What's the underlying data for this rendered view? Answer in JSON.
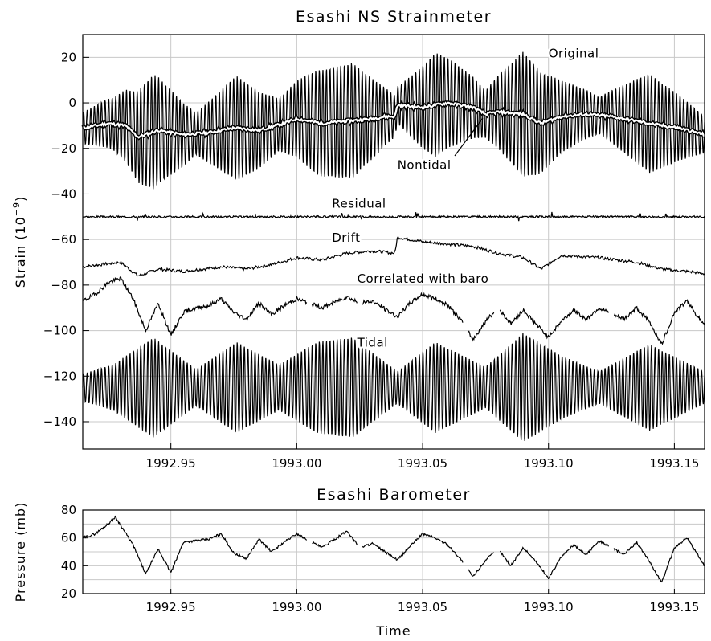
{
  "chart_data": [
    {
      "type": "line",
      "title": "Esashi NS Strainmeter",
      "ylabel_base": "Strain  (10",
      "ylabel_exp": "−9",
      "ylabel_close": ")",
      "xlim": [
        1992.915,
        1993.162
      ],
      "ylim": [
        -152,
        30
      ],
      "x_ticks": [
        1992.95,
        1993.0,
        1993.05,
        1993.1,
        1993.15
      ],
      "x_tick_labels": [
        "1992.95",
        "1993.00",
        "1993.05",
        "1993.10",
        "1993.15"
      ],
      "y_ticks": [
        20,
        0,
        -20,
        -40,
        -60,
        -80,
        -100,
        -120,
        -140
      ],
      "y_tick_labels": [
        "20",
        "0",
        "−20",
        "−40",
        "−60",
        "−80",
        "−100",
        "−120",
        "−140"
      ],
      "grid": true,
      "annotations": [
        {
          "text": "Original",
          "x": 1993.1,
          "y": 20
        },
        {
          "text": "Nontidal",
          "x": 1993.04,
          "y": -29
        },
        {
          "text": "Residual",
          "x": 1993.014,
          "y": -46
        },
        {
          "text": "Drift",
          "x": 1993.014,
          "y": -61
        },
        {
          "text": "Correlated  with  baro",
          "x": 1993.024,
          "y": -79
        },
        {
          "text": "Tidal",
          "x": 1993.024,
          "y": -107
        }
      ],
      "series": [
        {
          "name": "Original",
          "style": "tidal-oscillation",
          "base": "Nontidal",
          "note": "Original = Nontidal + Tidal oscillation"
        },
        {
          "name": "Nontidal",
          "offset": 0,
          "x": [
            1992.915,
            1992.925,
            1992.932,
            1992.937,
            1992.945,
            1992.955,
            1992.965,
            1992.975,
            1992.985,
            1992.995,
            1993.0,
            1993.01,
            1993.02,
            1993.03,
            1993.035,
            1993.039,
            1993.04,
            1993.05,
            1993.06,
            1993.07,
            1993.075,
            1993.08,
            1993.09,
            1993.097,
            1993.105,
            1993.115,
            1993.125,
            1993.135,
            1993.145,
            1993.152,
            1993.162
          ],
          "values": [
            -11,
            -9,
            -10,
            -15,
            -12,
            -14,
            -13,
            -11,
            -12,
            -9,
            -7,
            -9,
            -8,
            -7,
            -6,
            -6,
            -1,
            -2,
            0,
            -2,
            -5,
            -4,
            -5,
            -9,
            -6,
            -5,
            -6,
            -8,
            -10,
            -11,
            -14
          ]
        },
        {
          "name": "Residual",
          "offset": -50,
          "x": [
            1992.915,
            1993.162
          ],
          "values": [
            -50,
            -50
          ]
        },
        {
          "name": "Drift",
          "x": [
            1992.915,
            1992.93,
            1992.937,
            1992.945,
            1992.955,
            1992.97,
            1992.98,
            1992.99,
            1993.0,
            1993.01,
            1993.02,
            1993.03,
            1993.039,
            1993.04,
            1993.05,
            1993.06,
            1993.07,
            1993.08,
            1993.09,
            1993.097,
            1993.105,
            1993.12,
            1993.135,
            1993.145,
            1993.155,
            1993.162
          ],
          "values": [
            -72,
            -70,
            -76,
            -73,
            -74,
            -72,
            -73,
            -71,
            -68,
            -69,
            -66,
            -65,
            -66,
            -59,
            -61,
            -62,
            -63,
            -66,
            -68,
            -73,
            -67,
            -68,
            -70,
            -73,
            -74,
            -75
          ]
        },
        {
          "name": "Correlated with baro",
          "x": [
            1992.915,
            1992.92,
            1992.925,
            1992.93,
            1992.935,
            1992.94,
            1992.945,
            1992.95,
            1992.955,
            1992.96,
            1992.965,
            1992.97,
            1992.975,
            1992.98,
            1992.985,
            1992.99,
            1992.995,
            1993.0,
            1993.01,
            1993.02,
            1993.025,
            1993.03,
            1993.04,
            1993.045,
            1993.05,
            1993.055,
            1993.06,
            1993.065,
            1993.07,
            1993.075,
            1993.08,
            1993.085,
            1993.09,
            1993.095,
            1993.1,
            1993.105,
            1993.11,
            1993.115,
            1993.12,
            1993.125,
            1993.13,
            1993.135,
            1993.14,
            1993.145,
            1993.15,
            1993.155,
            1993.162
          ],
          "values": [
            -87,
            -84,
            -79,
            -77,
            -86,
            -100,
            -88,
            -102,
            -92,
            -90,
            -89,
            -86,
            -92,
            -95,
            -88,
            -93,
            -89,
            -86,
            -90,
            -85,
            -88,
            -87,
            -94,
            -88,
            -84,
            -86,
            -89,
            -95,
            -104,
            -96,
            -90,
            -97,
            -91,
            -97,
            -103,
            -96,
            -91,
            -95,
            -90,
            -93,
            -95,
            -90,
            -96,
            -106,
            -92,
            -87,
            -98
          ]
        },
        {
          "name": "Tidal",
          "offset": -125,
          "amplitude_envelope": {
            "x": [
              1992.915,
              1992.927,
              1992.943,
              1992.96,
              1992.976,
              1992.993,
              1993.008,
              1993.022,
              1993.04,
              1993.055,
              1993.075,
              1993.09,
              1993.105,
              1993.12,
              1993.14,
              1993.162
            ],
            "values": [
              6,
              10,
              22,
              8,
              20,
              10,
              20,
              22,
              7,
              20,
              9,
              24,
              14,
              7,
              19,
              7
            ]
          }
        }
      ]
    },
    {
      "type": "line",
      "title": "Esashi Barometer",
      "ylabel": "Pressure  (mb)",
      "xlabel": "Time",
      "xlim": [
        1992.915,
        1993.162
      ],
      "ylim": [
        20,
        80
      ],
      "x_ticks": [
        1992.95,
        1993.0,
        1993.05,
        1993.1,
        1993.15
      ],
      "x_tick_labels": [
        "1992.95",
        "1993.00",
        "1993.05",
        "1993.10",
        "1993.15"
      ],
      "y_ticks": [
        80,
        60,
        40,
        20
      ],
      "y_tick_labels": [
        "80",
        "60",
        "40",
        "20"
      ],
      "grid": true,
      "series": [
        {
          "name": "Pressure",
          "x": [
            1992.915,
            1992.92,
            1992.925,
            1992.928,
            1992.935,
            1992.94,
            1992.945,
            1992.95,
            1992.955,
            1992.96,
            1992.965,
            1992.97,
            1992.975,
            1992.98,
            1992.985,
            1992.99,
            1992.995,
            1993.0,
            1993.01,
            1993.02,
            1993.025,
            1993.03,
            1993.04,
            1993.045,
            1993.05,
            1993.055,
            1993.06,
            1993.065,
            1993.07,
            1993.075,
            1993.08,
            1993.085,
            1993.09,
            1993.095,
            1993.1,
            1993.105,
            1993.11,
            1993.115,
            1993.12,
            1993.125,
            1993.13,
            1993.135,
            1993.14,
            1993.145,
            1993.15,
            1993.155,
            1993.162
          ],
          "values": [
            60,
            63,
            70,
            75,
            55,
            34,
            52,
            35,
            57,
            58,
            59,
            63,
            49,
            45,
            59,
            50,
            57,
            63,
            53,
            65,
            53,
            56,
            44,
            54,
            63,
            60,
            55,
            45,
            32,
            44,
            52,
            40,
            53,
            43,
            31,
            46,
            55,
            48,
            58,
            53,
            48,
            57,
            43,
            28,
            53,
            60,
            40
          ]
        }
      ]
    }
  ]
}
